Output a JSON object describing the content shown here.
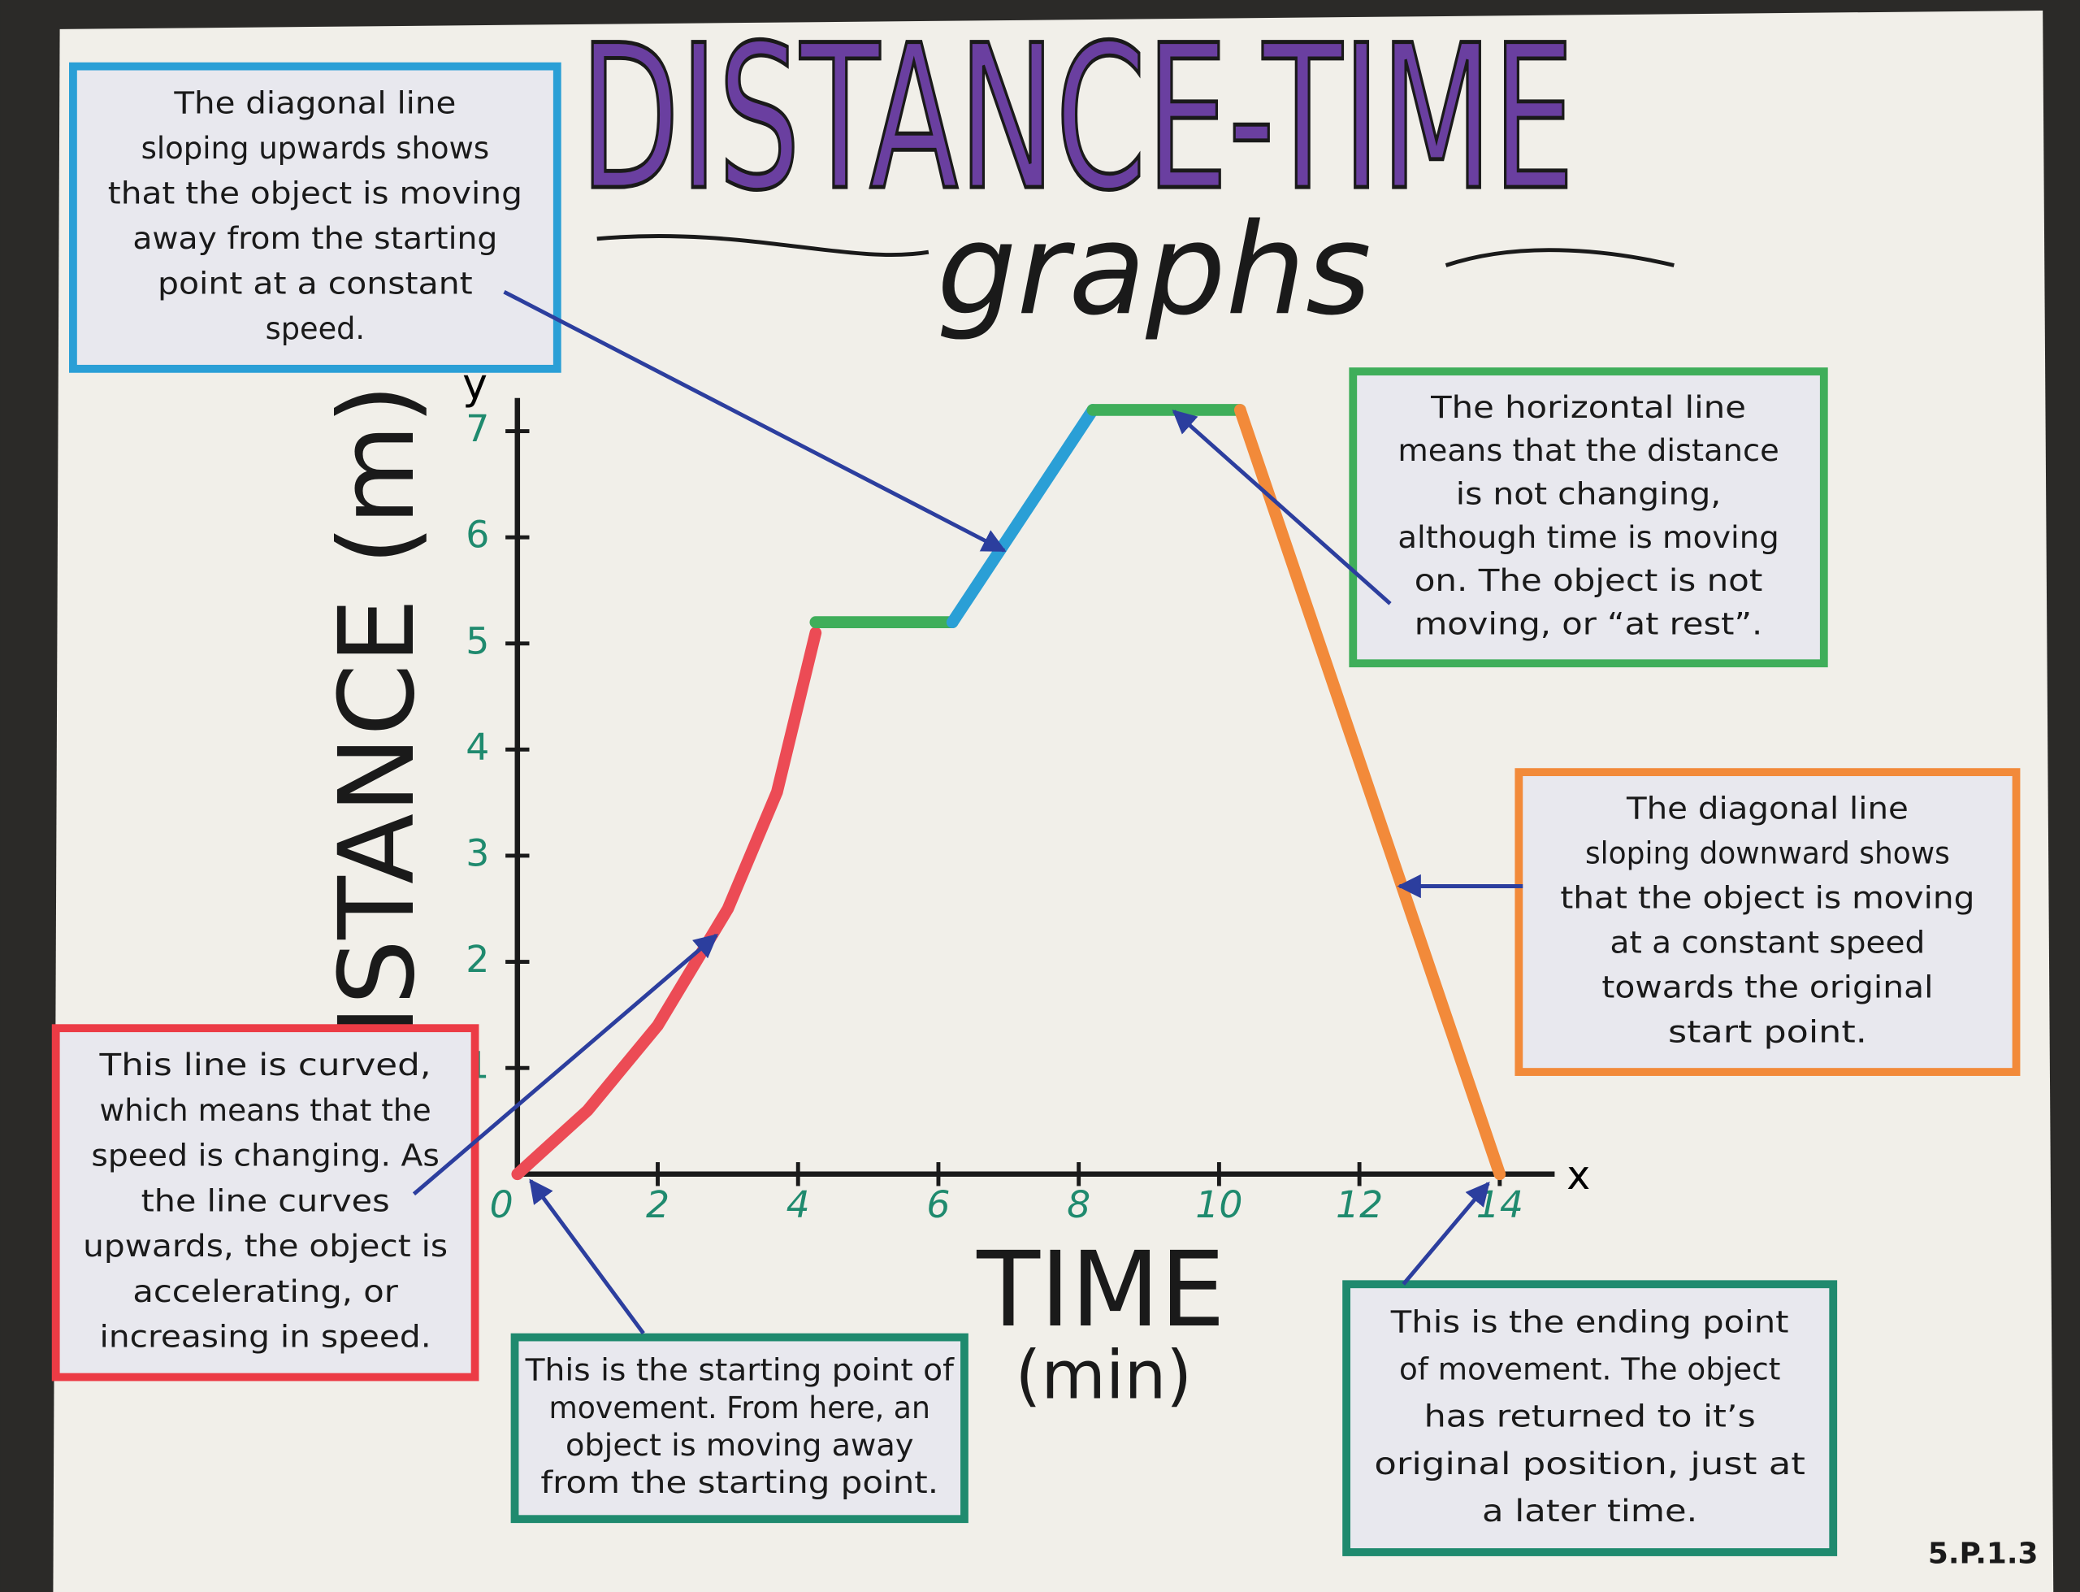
{
  "title": "DISTANCE-TIME",
  "subtitle": "graphs",
  "code": "5.P.1.3",
  "graph": {
    "x_label": "TIME",
    "x_unit": "(min)",
    "y_label": "DISTANCE (m)",
    "x_letter": "x",
    "y_letter": "y",
    "xlim": [
      0,
      14.8
    ],
    "ylim": [
      0,
      7.6
    ],
    "xticks": [
      0,
      2,
      4,
      6,
      8,
      10,
      12,
      14
    ],
    "yticks": [
      1,
      2,
      3,
      4,
      5,
      6,
      7
    ],
    "segments": [
      {
        "color": "#ec4b55",
        "x": [
          0,
          1,
          2,
          3,
          3.7,
          4.25
        ],
        "y": [
          0,
          0.6,
          1.4,
          2.5,
          3.6,
          5.1
        ]
      },
      {
        "color": "#3fae5a",
        "x": [
          4.25,
          6.2
        ],
        "y": [
          5.2,
          5.2
        ]
      },
      {
        "color": "#2a9fd6",
        "x": [
          6.2,
          8.2
        ],
        "y": [
          5.2,
          7.2
        ]
      },
      {
        "color": "#3fae5a",
        "x": [
          8.2,
          10.3
        ],
        "y": [
          7.2,
          7.2
        ]
      },
      {
        "color": "#f28a3a",
        "x": [
          10.3,
          14
        ],
        "y": [
          7.2,
          0
        ]
      }
    ]
  },
  "callouts": [
    {
      "color": "#2a9fd6",
      "lines": [
        "The diagonal line",
        "sloping upwards shows",
        "that the object is moving",
        "away from the starting",
        "point at a constant",
        "speed."
      ]
    },
    {
      "color": "#3fae5a",
      "lines": [
        "The horizontal line",
        "means that the distance",
        "is not changing,",
        "although time is moving",
        "on. The object is not",
        "moving, or “at rest”."
      ]
    },
    {
      "color": "#f28a3a",
      "lines": [
        "The diagonal line",
        "sloping downward shows",
        "that the object is moving",
        "at a constant speed",
        "towards the original",
        "start point."
      ]
    },
    {
      "color": "#ec3b45",
      "lines": [
        "This line is curved,",
        "which means that the",
        "speed is changing. As",
        "the line curves",
        "upwards, the object is",
        "accelerating, or",
        "increasing in speed."
      ]
    },
    {
      "color": "#1f8a6e",
      "lines": [
        "This is the starting point of",
        "movement. From here, an",
        "object is moving away",
        "from the starting point."
      ]
    },
    {
      "color": "#1f8a6e",
      "lines": [
        "This is the ending point",
        "of movement. The object",
        "has returned to it’s",
        "original position, just at",
        "a later time."
      ]
    }
  ]
}
